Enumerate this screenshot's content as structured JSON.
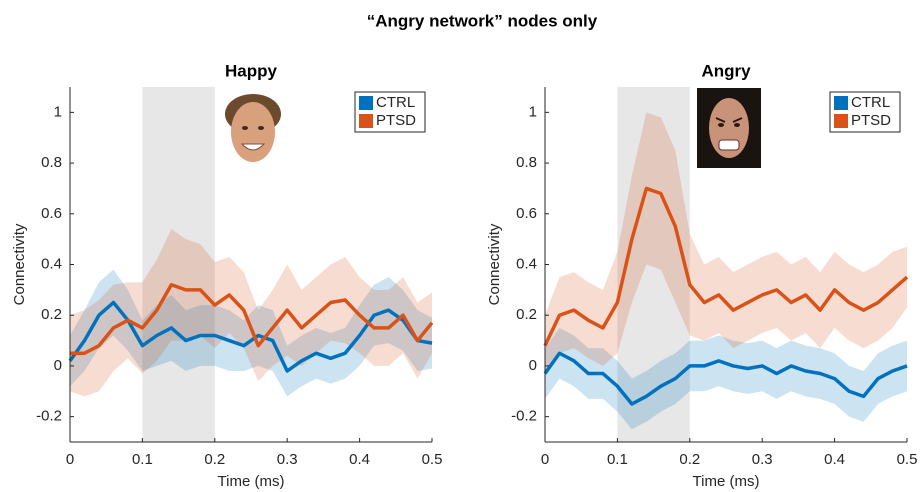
{
  "title": "“Angry network” nodes only",
  "chart_data": [
    {
      "type": "line",
      "title": "Happy",
      "xlabel": "Time (ms)",
      "ylabel": "Connectivity",
      "x": [
        0,
        0.02,
        0.04,
        0.06,
        0.08,
        0.1,
        0.12,
        0.14,
        0.16,
        0.18,
        0.2,
        0.22,
        0.24,
        0.26,
        0.28,
        0.3,
        0.32,
        0.34,
        0.36,
        0.38,
        0.4,
        0.42,
        0.44,
        0.46,
        0.48,
        0.5
      ],
      "xlim": [
        0,
        0.5
      ],
      "xticks": [
        0,
        0.1,
        0.2,
        0.3,
        0.4,
        0.5
      ],
      "ylim": [
        -0.3,
        1.1
      ],
      "yticks": [
        -0.2,
        0,
        0.2,
        0.4,
        0.6,
        0.8,
        1
      ],
      "highlight": [
        0.1,
        0.2
      ],
      "highlight_color": "#e3e3e3",
      "legend": "upper right",
      "series": [
        {
          "name": "CTRL",
          "color": "#0072BD",
          "values": [
            0.02,
            0.1,
            0.2,
            0.25,
            0.18,
            0.08,
            0.12,
            0.15,
            0.1,
            0.12,
            0.12,
            0.1,
            0.08,
            0.12,
            0.1,
            -0.02,
            0.02,
            0.05,
            0.03,
            0.05,
            0.12,
            0.2,
            0.22,
            0.18,
            0.1,
            0.09
          ],
          "error": [
            0.1,
            0.12,
            0.13,
            0.13,
            0.12,
            0.1,
            0.12,
            0.13,
            0.12,
            0.12,
            0.12,
            0.12,
            0.1,
            0.12,
            0.12,
            0.1,
            0.1,
            0.1,
            0.1,
            0.1,
            0.12,
            0.12,
            0.13,
            0.12,
            0.12,
            0.1
          ]
        },
        {
          "name": "PTSD",
          "color": "#D95319",
          "values": [
            0.05,
            0.05,
            0.08,
            0.15,
            0.18,
            0.15,
            0.22,
            0.32,
            0.3,
            0.3,
            0.24,
            0.28,
            0.22,
            0.08,
            0.15,
            0.22,
            0.15,
            0.2,
            0.25,
            0.26,
            0.2,
            0.15,
            0.15,
            0.2,
            0.1,
            0.17
          ],
          "error": [
            0.15,
            0.17,
            0.18,
            0.17,
            0.15,
            0.18,
            0.2,
            0.22,
            0.2,
            0.18,
            0.17,
            0.15,
            0.15,
            0.14,
            0.15,
            0.18,
            0.15,
            0.15,
            0.15,
            0.17,
            0.15,
            0.15,
            0.15,
            0.15,
            0.15,
            0.12
          ]
        }
      ]
    },
    {
      "type": "line",
      "title": "Angry",
      "xlabel": "Time (ms)",
      "ylabel": "Connectivity",
      "x": [
        0,
        0.02,
        0.04,
        0.06,
        0.08,
        0.1,
        0.12,
        0.14,
        0.16,
        0.18,
        0.2,
        0.22,
        0.24,
        0.26,
        0.28,
        0.3,
        0.32,
        0.34,
        0.36,
        0.38,
        0.4,
        0.42,
        0.44,
        0.46,
        0.48,
        0.5
      ],
      "xlim": [
        0,
        0.5
      ],
      "xticks": [
        0,
        0.1,
        0.2,
        0.3,
        0.4,
        0.5
      ],
      "ylim": [
        -0.3,
        1.1
      ],
      "yticks": [
        -0.2,
        0,
        0.2,
        0.4,
        0.6,
        0.8,
        1
      ],
      "highlight": [
        0.1,
        0.2
      ],
      "highlight_color": "#e3e3e3",
      "legend": "upper right",
      "series": [
        {
          "name": "CTRL",
          "color": "#0072BD",
          "values": [
            -0.03,
            0.05,
            0.02,
            -0.03,
            -0.03,
            -0.08,
            -0.15,
            -0.12,
            -0.08,
            -0.05,
            0,
            0,
            0.02,
            0,
            -0.01,
            0,
            -0.03,
            0,
            -0.02,
            -0.03,
            -0.05,
            -0.1,
            -0.12,
            -0.05,
            -0.02,
            0
          ],
          "error": [
            0.1,
            0.1,
            0.1,
            0.1,
            0.1,
            0.1,
            0.1,
            0.1,
            0.1,
            0.1,
            0.1,
            0.1,
            0.1,
            0.1,
            0.1,
            0.1,
            0.1,
            0.1,
            0.1,
            0.1,
            0.1,
            0.1,
            0.1,
            0.1,
            0.1,
            0.1
          ]
        },
        {
          "name": "PTSD",
          "color": "#D95319",
          "values": [
            0.08,
            0.2,
            0.22,
            0.18,
            0.15,
            0.25,
            0.5,
            0.7,
            0.68,
            0.55,
            0.32,
            0.25,
            0.28,
            0.22,
            0.25,
            0.28,
            0.3,
            0.25,
            0.28,
            0.22,
            0.3,
            0.25,
            0.22,
            0.25,
            0.3,
            0.35
          ],
          "error": [
            0.12,
            0.15,
            0.15,
            0.15,
            0.15,
            0.2,
            0.25,
            0.3,
            0.3,
            0.3,
            0.2,
            0.15,
            0.15,
            0.15,
            0.15,
            0.15,
            0.15,
            0.15,
            0.15,
            0.15,
            0.15,
            0.15,
            0.15,
            0.15,
            0.15,
            0.12
          ]
        }
      ]
    }
  ]
}
